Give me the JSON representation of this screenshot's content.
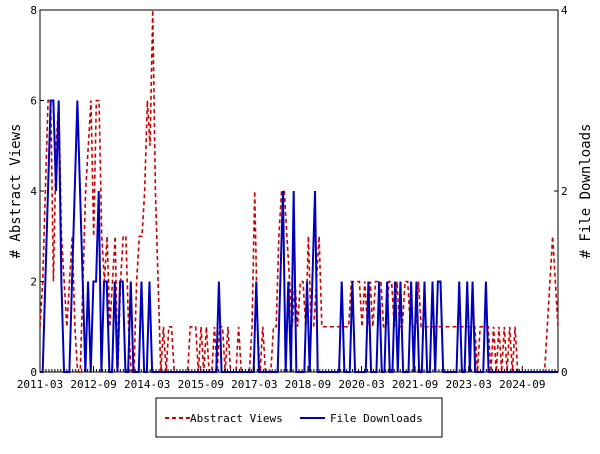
{
  "chart_data": {
    "type": "line",
    "ylabel_left": "# Abstract Views",
    "ylabel_right": "# File Downloads",
    "y_left_range": [
      0,
      8
    ],
    "y_left_ticks": [
      "0",
      "2",
      "4",
      "6",
      "8"
    ],
    "y_right_range": [
      0,
      4
    ],
    "y_right_ticks": [
      "0",
      "2",
      "4"
    ],
    "x_tick_labels": [
      "2011-03",
      "2012-09",
      "2014-03",
      "2015-09",
      "2017-03",
      "2018-09",
      "2020-03",
      "2021-09",
      "2023-03",
      "2024-09"
    ],
    "x_start": "2011-03",
    "x_end": "2025-09",
    "grid": false,
    "legend_position": "bottom",
    "series": [
      {
        "name": "Abstract Views",
        "color": "#cc0000",
        "style": "dashed",
        "axis": "left",
        "values": [
          1,
          2,
          4,
          6,
          6,
          2,
          5,
          6,
          3,
          2,
          1,
          2,
          3,
          1,
          0,
          0,
          2,
          4,
          5,
          6,
          3,
          6,
          6,
          3,
          2,
          3,
          1,
          2,
          3,
          0,
          2,
          3,
          3,
          1,
          0,
          0,
          2,
          3,
          3,
          4,
          6,
          5,
          8,
          4,
          2,
          0,
          1,
          0,
          1,
          1,
          0,
          0,
          0,
          0,
          0,
          0,
          1,
          1,
          1,
          0,
          1,
          0,
          1,
          0,
          0,
          1,
          0,
          1,
          1,
          0,
          1,
          0,
          0,
          0,
          1,
          0,
          0,
          0,
          0,
          1,
          4,
          1,
          0,
          1,
          0,
          0,
          0,
          1,
          1,
          3,
          4,
          4,
          3,
          2,
          1,
          2,
          1,
          2,
          2,
          1,
          3,
          1,
          1,
          2,
          3,
          1,
          1,
          1,
          1,
          1,
          1,
          1,
          1,
          1,
          1,
          1,
          2,
          2,
          2,
          2,
          1,
          2,
          1,
          2,
          1,
          2,
          2,
          2,
          1,
          1,
          2,
          2,
          1,
          2,
          1,
          1,
          2,
          2,
          1,
          1,
          1,
          2,
          1,
          1,
          1,
          1,
          1,
          1,
          1,
          1,
          1,
          1,
          1,
          1,
          1,
          1,
          1,
          1,
          1,
          1,
          1,
          1,
          1,
          0,
          1,
          1,
          1,
          1,
          0,
          1,
          0,
          1,
          0,
          1,
          0,
          1,
          0,
          1,
          0,
          0,
          0,
          0,
          0,
          0,
          0,
          0,
          0,
          0,
          0,
          1,
          2,
          3,
          2,
          1
        ]
      },
      {
        "name": "File Downloads",
        "color": "#0000bb",
        "style": "solid",
        "axis": "right",
        "values": [
          0,
          0,
          1,
          2,
          3,
          3,
          2,
          3,
          1,
          0,
          0,
          0,
          1,
          2,
          3,
          2,
          1,
          0,
          1,
          0,
          1,
          1,
          2,
          0,
          1,
          1,
          0,
          0,
          1,
          0,
          1,
          1,
          0,
          0,
          1,
          0,
          0,
          0,
          1,
          0,
          0,
          1,
          0,
          0,
          0,
          0,
          0,
          0,
          0,
          0,
          0,
          0,
          0,
          0,
          0,
          0,
          0,
          0,
          0,
          0,
          0,
          0,
          0,
          0,
          0,
          0,
          0,
          1,
          0,
          0,
          0,
          0,
          0,
          0,
          0,
          0,
          0,
          0,
          0,
          0,
          0,
          1,
          0,
          0,
          0,
          0,
          0,
          0,
          0,
          0,
          1,
          2,
          0,
          1,
          0,
          2,
          0,
          0,
          0,
          0,
          1,
          0,
          1,
          2,
          0,
          0,
          0,
          0,
          0,
          0,
          0,
          0,
          0,
          1,
          0,
          0,
          0,
          1,
          0,
          0,
          0,
          0,
          0,
          1,
          0,
          0,
          0,
          1,
          0,
          0,
          1,
          0,
          0,
          1,
          0,
          1,
          0,
          0,
          0,
          1,
          0,
          1,
          0,
          0,
          1,
          0,
          0,
          1,
          0,
          1,
          1,
          0,
          0,
          0,
          0,
          0,
          0,
          1,
          0,
          0,
          1,
          0,
          1,
          0,
          0,
          0,
          0,
          1,
          0,
          0,
          0,
          0,
          0,
          0,
          0,
          0,
          0,
          0,
          0,
          0,
          0,
          0,
          0,
          0,
          0,
          0,
          0,
          0,
          0,
          0,
          0,
          0,
          0,
          0,
          0
        ]
      }
    ]
  }
}
